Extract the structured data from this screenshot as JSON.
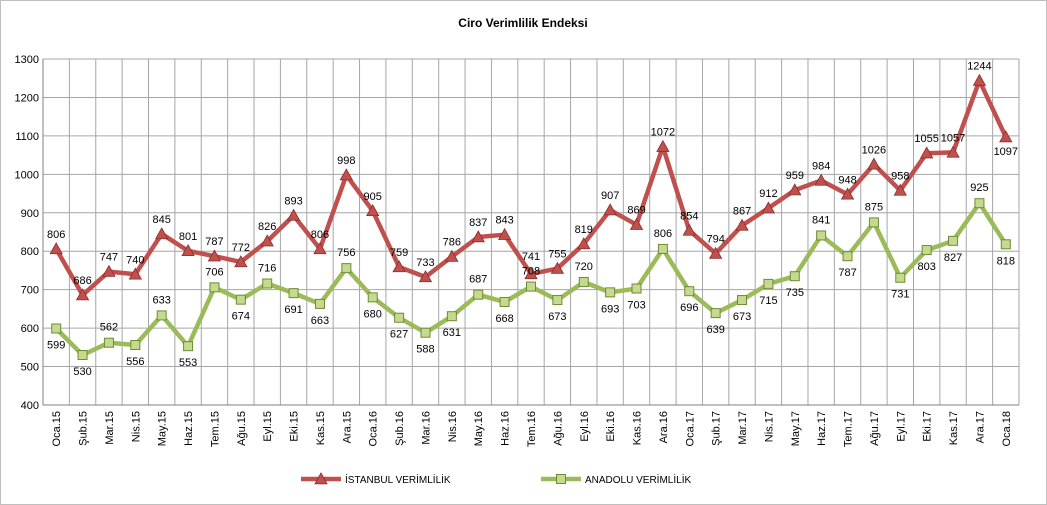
{
  "chart_data": {
    "type": "line",
    "title": "Ciro Verimlilik Endeksi",
    "xlabel": "",
    "ylabel": "",
    "ylim": [
      400,
      1300
    ],
    "ytick_step": 100,
    "grid": true,
    "legend_position": "bottom",
    "categories": [
      "Oca.15",
      "Şub.15",
      "Mar.15",
      "Nis.15",
      "May.15",
      "Haz.15",
      "Tem.15",
      "Ağu.15",
      "Eyl.15",
      "Eki.15",
      "Kas.15",
      "Ara.15",
      "Oca.16",
      "Şub.16",
      "Mar.16",
      "Nis.16",
      "May.16",
      "Haz.16",
      "Tem.16",
      "Ağu.16",
      "Eyl.16",
      "Eki.16",
      "Kas.16",
      "Ara.16",
      "Oca.17",
      "Şub.17",
      "Mar.17",
      "Nis.17",
      "May.17",
      "Haz.17",
      "Tem.17",
      "Ağu.17",
      "Eyl.17",
      "Eki.17",
      "Kas.17",
      "Ara.17",
      "Oca.18"
    ],
    "series": [
      {
        "name": "İSTANBUL VERİMLİLİK",
        "color": "#c0504d",
        "marker": "triangle",
        "values": [
          806,
          686,
          747,
          740,
          845,
          801,
          787,
          772,
          826,
          893,
          806,
          998,
          905,
          759,
          733,
          786,
          837,
          843,
          741,
          755,
          819,
          907,
          869,
          1072,
          854,
          794,
          867,
          912,
          959,
          984,
          948,
          1026,
          958,
          1055,
          1057,
          1244,
          1097
        ]
      },
      {
        "name": "ANADOLU VERİMLİLİK",
        "color": "#9bbb59",
        "marker": "square",
        "values": [
          599,
          530,
          562,
          556,
          633,
          553,
          706,
          674,
          716,
          691,
          663,
          756,
          680,
          627,
          588,
          631,
          687,
          668,
          708,
          673,
          720,
          693,
          703,
          806,
          696,
          639,
          673,
          715,
          735,
          841,
          787,
          875,
          731,
          803,
          827,
          925,
          818
        ]
      }
    ]
  }
}
